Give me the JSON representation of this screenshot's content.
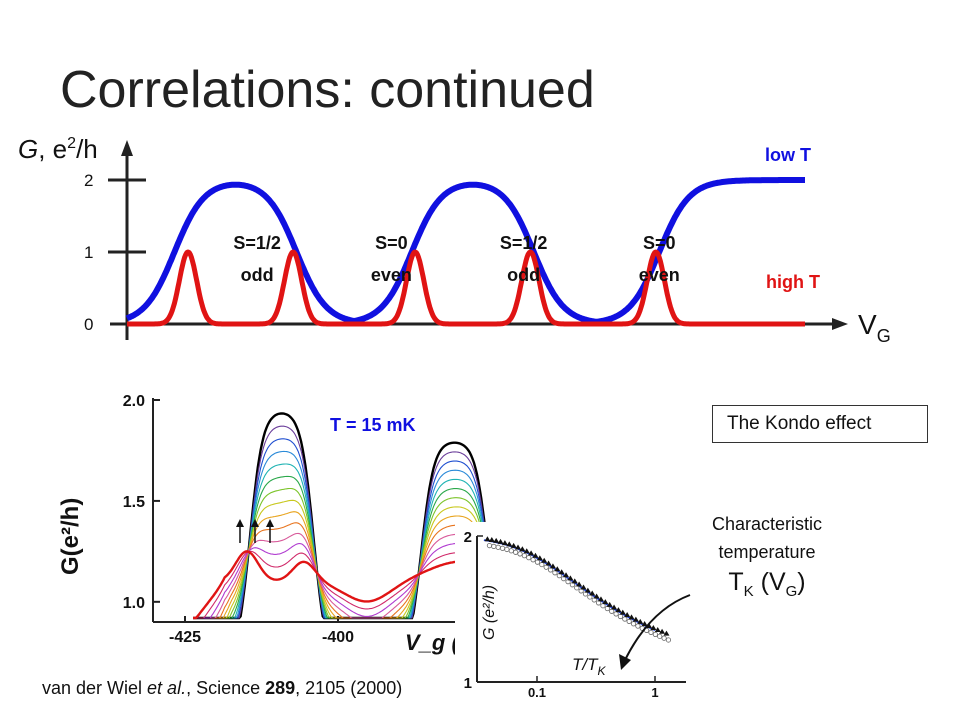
{
  "slide": {
    "title": "Correlations: continued",
    "kondo_box": "The Kondo effect",
    "characteristic_label": [
      "Characteristic",
      "temperature"
    ],
    "tk_label": {
      "main": "T",
      "sub": "K",
      "paren_open": " (V",
      "paren_sub": "G",
      "paren_close": ")"
    },
    "citation": {
      "authors": "van der Wiel ",
      "etal": "et al.",
      "journal": ", Science ",
      "volume": "289",
      "rest": ", 2105 (2000)"
    }
  },
  "colors": {
    "low_T": "#1010e0",
    "high_T": "#e01414",
    "text": "#111111",
    "title": "#222222"
  },
  "chart_data": [
    {
      "type": "line",
      "title": "",
      "ylabel_parts": {
        "g": "G",
        "sep": ", e",
        "sup": "2",
        "unit": "/h"
      },
      "xlabel_parts": {
        "v": "V",
        "sub": "G"
      },
      "y_ticks": [
        "0",
        "1",
        "2"
      ],
      "ylim": [
        0,
        2
      ],
      "grid": false,
      "series": [
        {
          "name": "low T",
          "shape": "plateaus at 2 in odd regions, 0 in even regions",
          "color": "#1010e0"
        },
        {
          "name": "high T",
          "shape": "peaks at 1 at each charge transition",
          "color": "#e01414"
        }
      ],
      "plateau_regions_x": [
        [
          0.115,
          0.205
        ],
        [
          0.465,
          0.555
        ],
        [
          0.83,
          0.88
        ]
      ],
      "peak_positions_x": [
        0.09,
        0.245,
        0.425,
        0.595,
        0.78
      ],
      "region_labels": [
        {
          "spin": "S=1/2",
          "parity": "odd"
        },
        {
          "spin": "S=0",
          "parity": "even"
        },
        {
          "spin": "S=1/2",
          "parity": "odd"
        },
        {
          "spin": "S=0",
          "parity": "even"
        }
      ]
    },
    {
      "type": "line",
      "title": "T = 15 mK",
      "ylabel": "G(e²/h)",
      "xlabel": "V_g (m",
      "y_ticks": [
        "1.0",
        "1.5",
        "2.0"
      ],
      "x_ticks": [
        "-425",
        "-400"
      ],
      "ylim": [
        0.9,
        2.0
      ],
      "series_count": 14,
      "series_note": "temperatures from 15 mK (black, top) to high T (red)"
    },
    {
      "type": "scatter",
      "ylabel": "G (e²/h)",
      "xlabel_parts": {
        "main": "T/T",
        "sub": "K"
      },
      "y_ticks": [
        "1",
        "2"
      ],
      "x_ticks": [
        "0.1",
        "1"
      ],
      "x_scale": "log",
      "ylim": [
        1,
        2
      ],
      "fit_line": "blue"
    }
  ],
  "arrows": {
    "count": 3
  }
}
